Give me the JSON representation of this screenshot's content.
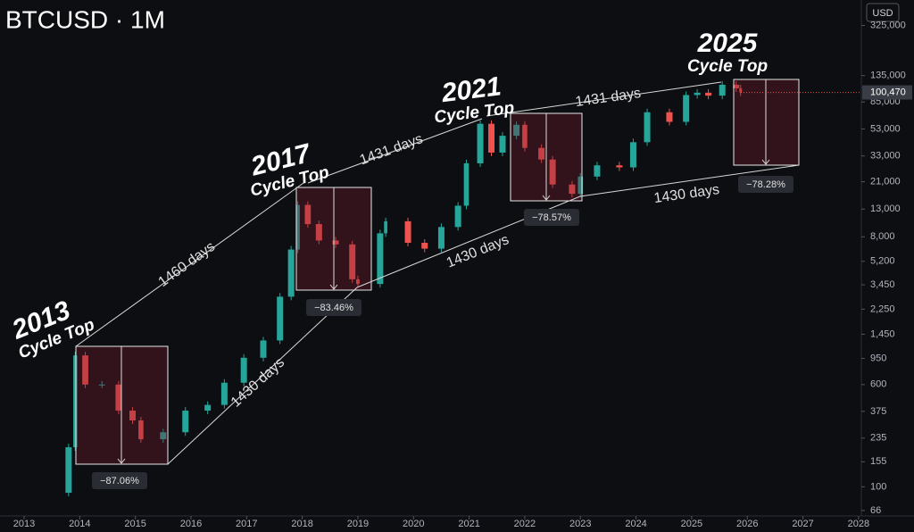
{
  "header": {
    "symbol": "BTCUSD · 1M",
    "currency": "USD"
  },
  "chart_data": {
    "type": "candle-line",
    "log_y": true,
    "up_color": "#26a69a",
    "down_color": "#ef5350",
    "current_price": {
      "value": 100470,
      "label": "100,470"
    },
    "x": [
      2013.5,
      2013.8,
      2013.92,
      2014.1,
      2014.4,
      2014.7,
      2014.95,
      2015.1,
      2015.5,
      2015.9,
      2016.3,
      2016.6,
      2016.95,
      2017.3,
      2017.6,
      2017.8,
      2017.92,
      2018.1,
      2018.3,
      2018.6,
      2018.9,
      2019.0,
      2019.4,
      2019.5,
      2019.9,
      2020.2,
      2020.5,
      2020.8,
      2020.95,
      2021.2,
      2021.4,
      2021.6,
      2021.85,
      2022.0,
      2022.3,
      2022.5,
      2022.85,
      2023.0,
      2023.3,
      2023.7,
      2023.95,
      2024.2,
      2024.6,
      2024.9,
      2025.1,
      2025.3,
      2025.55,
      2025.8,
      2025.88
    ],
    "values": [
      90,
      200,
      1000,
      600,
      600,
      380,
      320,
      230,
      260,
      380,
      420,
      620,
      960,
      1300,
      2800,
      6400,
      14000,
      10000,
      7500,
      7000,
      3800,
      3500,
      8500,
      10500,
      7200,
      6500,
      9500,
      13800,
      29000,
      58000,
      35000,
      47000,
      57000,
      38000,
      31000,
      20000,
      17000,
      23000,
      28000,
      27000,
      42000,
      71000,
      60000,
      96000,
      100000,
      95000,
      115000,
      108000,
      100470
    ],
    "xlim": [
      2012.567,
      2028.05
    ],
    "xticks": [
      2013,
      2014,
      2015,
      2016,
      2017,
      2018,
      2019,
      2020,
      2021,
      2022,
      2023,
      2024,
      2025,
      2026,
      2027,
      2028
    ],
    "ylim": [
      60,
      500000
    ],
    "yticks": [
      {
        "value": 325000,
        "label": "325,000"
      },
      {
        "value": 135000,
        "label": "135,000"
      },
      {
        "value": 85000,
        "label": "85,000"
      },
      {
        "value": 53000,
        "label": "53,000"
      },
      {
        "value": 33000,
        "label": "33,000"
      },
      {
        "value": 21000,
        "label": "21,000"
      },
      {
        "value": 13000,
        "label": "13,000"
      },
      {
        "value": 8000,
        "label": "8,000"
      },
      {
        "value": 5200,
        "label": "5,200"
      },
      {
        "value": 3450,
        "label": "3,450"
      },
      {
        "value": 2250,
        "label": "2,250"
      },
      {
        "value": 1450,
        "label": "1,450"
      },
      950,
      600,
      375,
      235,
      155,
      100,
      66
    ],
    "cycle_tops": [
      {
        "year": "2013",
        "label": "Cycle Top"
      },
      {
        "year": "2017",
        "label": "Cycle Top"
      },
      {
        "year": "2021",
        "label": "Cycle Top"
      },
      {
        "year": "2025",
        "label": "Cycle Top"
      }
    ],
    "top_spans": [
      "1460 days",
      "1431 days",
      "1431 days"
    ],
    "bottom_spans": [
      "1430 days",
      "1430 days",
      "1430 days"
    ],
    "drawdowns": [
      "−87.06%",
      "−83.46%",
      "−78.57%",
      "−78.28%"
    ]
  }
}
